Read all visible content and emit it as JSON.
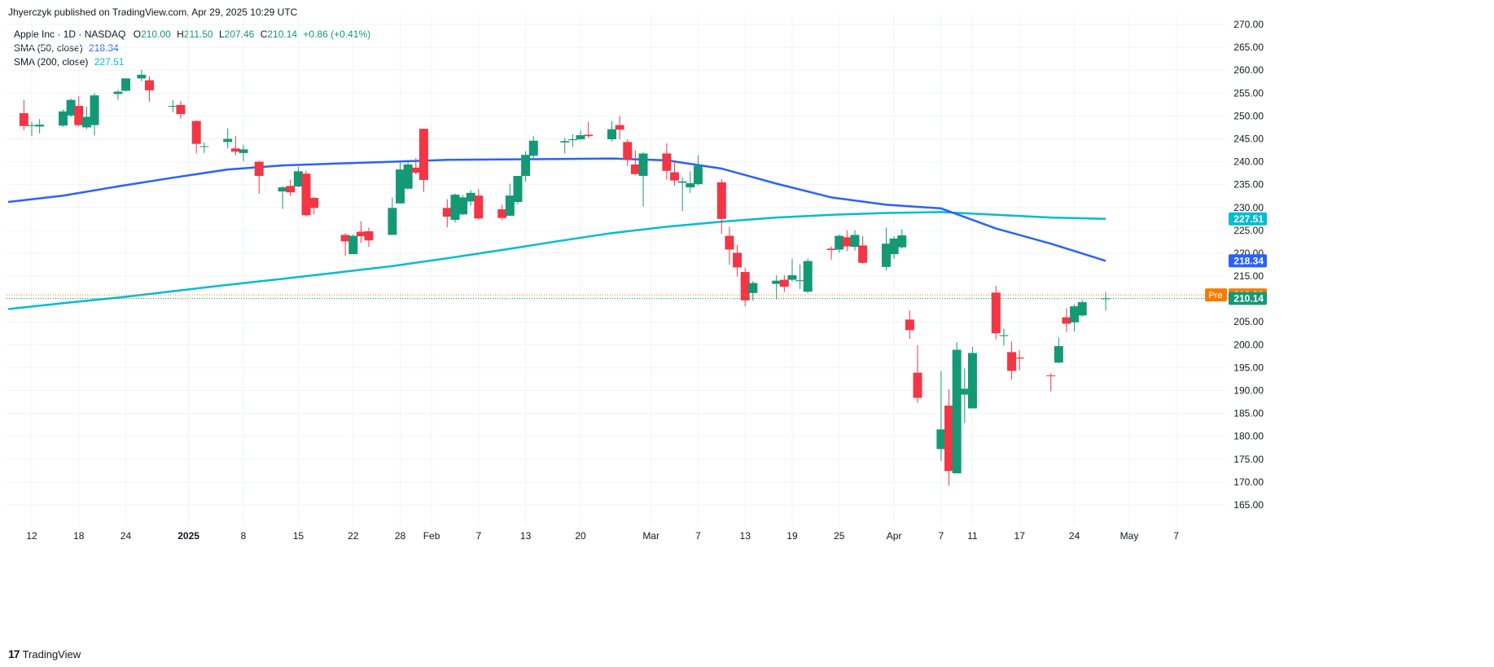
{
  "header": {
    "publisher": "Jhyerczyk published on TradingView.com, Apr 29, 2025 10:29 UTC"
  },
  "legend": {
    "symbol": "Apple Inc · 1D · NASDAQ",
    "o_label": "O",
    "o_value": "210.00",
    "h_label": "H",
    "h_value": "211.50",
    "l_label": "L",
    "l_value": "207.46",
    "c_label": "C",
    "c_value": "210.14",
    "change": "+0.86 (+0.41%)",
    "sma50_label": "SMA (50, close)",
    "sma50_value": "218.34",
    "sma200_label": "SMA (200, close)",
    "sma200_value": "227.51"
  },
  "price_tags": {
    "sma200": "227.51",
    "sma50": "218.34",
    "pre_label": "Pre",
    "pre_value": "210.90",
    "last": "210.14"
  },
  "footer": {
    "brand": "TradingView"
  },
  "colors": {
    "up": "#26a69a",
    "down": "#f23645",
    "up_body": "#149977",
    "down_body": "#f23645",
    "sma50": "#2962ff",
    "sma200": "#00bcd4",
    "pre": "#f57c00",
    "grid": "#f0f3fa"
  },
  "chart_data": {
    "type": "candlestick",
    "title": "Apple Inc · 1D · NASDAQ",
    "ylim": [
      160,
      272
    ],
    "y_ticks": [
      "270.00",
      "265.00",
      "260.00",
      "255.00",
      "250.00",
      "245.00",
      "240.00",
      "235.00",
      "230.00",
      "225.00",
      "220.00",
      "215.00",
      "210.00",
      "205.00",
      "200.00",
      "195.00",
      "190.00",
      "185.00",
      "180.00",
      "175.00",
      "170.00",
      "165.00"
    ],
    "x_ticks": [
      "12",
      "18",
      "24",
      "2025",
      "8",
      "15",
      "22",
      "28",
      "Feb",
      "7",
      "13",
      "20",
      "Mar",
      "7",
      "13",
      "19",
      "25",
      "Apr",
      "7",
      "11",
      "17",
      "24",
      "May",
      "7"
    ],
    "candles": [
      {
        "d": "2024-12-11",
        "o": 250.6,
        "h": 253.5,
        "l": 246.9,
        "c": 247.8
      },
      {
        "d": "2024-12-12",
        "o": 247.8,
        "h": 248.7,
        "l": 245.6,
        "c": 248.0
      },
      {
        "d": "2024-12-13",
        "o": 247.7,
        "h": 249.3,
        "l": 246.2,
        "c": 248.1
      },
      {
        "d": "2024-12-16",
        "o": 247.9,
        "h": 251.4,
        "l": 247.6,
        "c": 251.0
      },
      {
        "d": "2024-12-17",
        "o": 250.1,
        "h": 253.8,
        "l": 249.8,
        "c": 253.5
      },
      {
        "d": "2024-12-18",
        "o": 252.2,
        "h": 254.3,
        "l": 247.7,
        "c": 248.0
      },
      {
        "d": "2024-12-19",
        "o": 247.5,
        "h": 252.0,
        "l": 247.1,
        "c": 249.8
      },
      {
        "d": "2024-12-20",
        "o": 248.0,
        "h": 255.0,
        "l": 245.7,
        "c": 254.5
      },
      {
        "d": "2024-12-23",
        "o": 254.8,
        "h": 255.7,
        "l": 253.5,
        "c": 255.3
      },
      {
        "d": "2024-12-24",
        "o": 255.5,
        "h": 258.2,
        "l": 255.3,
        "c": 258.2
      },
      {
        "d": "2024-12-26",
        "o": 258.2,
        "h": 260.1,
        "l": 257.6,
        "c": 259.0
      },
      {
        "d": "2024-12-27",
        "o": 257.8,
        "h": 258.7,
        "l": 253.1,
        "c": 255.6
      },
      {
        "d": "2024-12-30",
        "o": 252.2,
        "h": 253.5,
        "l": 250.8,
        "c": 252.2
      },
      {
        "d": "2024-12-31",
        "o": 252.4,
        "h": 253.3,
        "l": 249.4,
        "c": 250.4
      },
      {
        "d": "2025-01-02",
        "o": 248.9,
        "h": 249.1,
        "l": 241.8,
        "c": 243.9
      },
      {
        "d": "2025-01-03",
        "o": 243.4,
        "h": 244.2,
        "l": 241.9,
        "c": 243.4
      },
      {
        "d": "2025-01-06",
        "o": 244.3,
        "h": 247.3,
        "l": 242.9,
        "c": 245.0
      },
      {
        "d": "2025-01-07",
        "o": 242.9,
        "h": 245.6,
        "l": 241.4,
        "c": 242.2
      },
      {
        "d": "2025-01-08",
        "o": 241.9,
        "h": 243.7,
        "l": 240.1,
        "c": 242.7
      },
      {
        "d": "2025-01-10",
        "o": 240.0,
        "h": 240.2,
        "l": 233.0,
        "c": 236.9
      },
      {
        "d": "2025-01-13",
        "o": 233.5,
        "h": 234.7,
        "l": 229.7,
        "c": 234.4
      },
      {
        "d": "2025-01-14",
        "o": 234.7,
        "h": 236.1,
        "l": 232.5,
        "c": 233.3
      },
      {
        "d": "2025-01-15",
        "o": 234.6,
        "h": 238.9,
        "l": 234.4,
        "c": 237.9
      },
      {
        "d": "2025-01-16",
        "o": 237.4,
        "h": 238.0,
        "l": 228.0,
        "c": 228.3
      },
      {
        "d": "2025-01-17",
        "o": 232.1,
        "h": 232.3,
        "l": 228.5,
        "c": 229.9
      },
      {
        "d": "2025-01-21",
        "o": 224.0,
        "h": 224.4,
        "l": 219.4,
        "c": 222.6
      },
      {
        "d": "2025-01-22",
        "o": 219.8,
        "h": 224.1,
        "l": 219.8,
        "c": 223.8
      },
      {
        "d": "2025-01-23",
        "o": 224.7,
        "h": 227.0,
        "l": 222.3,
        "c": 223.7
      },
      {
        "d": "2025-01-24",
        "o": 224.8,
        "h": 225.6,
        "l": 221.4,
        "c": 222.8
      },
      {
        "d": "2025-01-27",
        "o": 224.0,
        "h": 232.2,
        "l": 224.0,
        "c": 229.9
      },
      {
        "d": "2025-01-28",
        "o": 230.9,
        "h": 240.2,
        "l": 230.8,
        "c": 238.3
      },
      {
        "d": "2025-01-29",
        "o": 234.1,
        "h": 239.9,
        "l": 234.0,
        "c": 239.4
      },
      {
        "d": "2025-01-30",
        "o": 238.7,
        "h": 240.8,
        "l": 237.2,
        "c": 237.6
      },
      {
        "d": "2025-01-31",
        "o": 247.2,
        "h": 247.2,
        "l": 233.4,
        "c": 236.0
      },
      {
        "d": "2025-02-03",
        "o": 229.9,
        "h": 231.8,
        "l": 225.7,
        "c": 228.0
      },
      {
        "d": "2025-02-04",
        "o": 227.3,
        "h": 233.1,
        "l": 226.7,
        "c": 232.8
      },
      {
        "d": "2025-02-05",
        "o": 228.5,
        "h": 232.7,
        "l": 228.3,
        "c": 232.2
      },
      {
        "d": "2025-02-06",
        "o": 231.3,
        "h": 233.8,
        "l": 230.4,
        "c": 233.2
      },
      {
        "d": "2025-02-07",
        "o": 232.6,
        "h": 234.0,
        "l": 227.3,
        "c": 227.6
      },
      {
        "d": "2025-02-10",
        "o": 229.6,
        "h": 230.6,
        "l": 227.2,
        "c": 227.7
      },
      {
        "d": "2025-02-11",
        "o": 228.2,
        "h": 235.2,
        "l": 228.1,
        "c": 232.6
      },
      {
        "d": "2025-02-12",
        "o": 231.2,
        "h": 236.9,
        "l": 230.7,
        "c": 236.9
      },
      {
        "d": "2025-02-13",
        "o": 236.9,
        "h": 242.3,
        "l": 235.6,
        "c": 241.5
      },
      {
        "d": "2025-02-14",
        "o": 241.3,
        "h": 245.6,
        "l": 240.8,
        "c": 244.6
      },
      {
        "d": "2025-02-18",
        "o": 244.2,
        "h": 245.2,
        "l": 241.8,
        "c": 244.5
      },
      {
        "d": "2025-02-19",
        "o": 244.7,
        "h": 246.0,
        "l": 243.2,
        "c": 244.9
      },
      {
        "d": "2025-02-20",
        "o": 244.9,
        "h": 246.8,
        "l": 244.8,
        "c": 245.8
      },
      {
        "d": "2025-02-21",
        "o": 245.9,
        "h": 248.7,
        "l": 245.2,
        "c": 245.6
      },
      {
        "d": "2025-02-24",
        "o": 244.9,
        "h": 248.9,
        "l": 244.4,
        "c": 247.1
      },
      {
        "d": "2025-02-25",
        "o": 248.0,
        "h": 250.0,
        "l": 244.9,
        "c": 247.0
      },
      {
        "d": "2025-02-26",
        "o": 244.3,
        "h": 244.9,
        "l": 239.1,
        "c": 240.4
      },
      {
        "d": "2025-02-27",
        "o": 239.4,
        "h": 242.5,
        "l": 237.1,
        "c": 237.3
      },
      {
        "d": "2025-02-28",
        "o": 236.9,
        "h": 242.1,
        "l": 230.2,
        "c": 241.8
      },
      {
        "d": "2025-03-03",
        "o": 241.8,
        "h": 244.0,
        "l": 236.1,
        "c": 238.0
      },
      {
        "d": "2025-03-04",
        "o": 237.7,
        "h": 240.1,
        "l": 234.7,
        "c": 235.9
      },
      {
        "d": "2025-03-05",
        "o": 235.4,
        "h": 236.6,
        "l": 229.2,
        "c": 235.7
      },
      {
        "d": "2025-03-06",
        "o": 234.4,
        "h": 237.9,
        "l": 233.2,
        "c": 235.3
      },
      {
        "d": "2025-03-07",
        "o": 235.1,
        "h": 241.4,
        "l": 234.8,
        "c": 239.1
      },
      {
        "d": "2025-03-10",
        "o": 235.5,
        "h": 236.2,
        "l": 224.2,
        "c": 227.5
      },
      {
        "d": "2025-03-11",
        "o": 223.8,
        "h": 225.8,
        "l": 217.5,
        "c": 220.8
      },
      {
        "d": "2025-03-12",
        "o": 220.1,
        "h": 221.8,
        "l": 214.9,
        "c": 216.9
      },
      {
        "d": "2025-03-13",
        "o": 215.9,
        "h": 216.8,
        "l": 208.4,
        "c": 209.7
      },
      {
        "d": "2025-03-14",
        "o": 211.3,
        "h": 213.9,
        "l": 209.6,
        "c": 213.5
      },
      {
        "d": "2025-03-17",
        "o": 213.3,
        "h": 215.2,
        "l": 209.9,
        "c": 214.0
      },
      {
        "d": "2025-03-18",
        "o": 214.2,
        "h": 215.2,
        "l": 211.5,
        "c": 212.7
      },
      {
        "d": "2025-03-19",
        "o": 214.2,
        "h": 218.8,
        "l": 213.8,
        "c": 215.2
      },
      {
        "d": "2025-03-20",
        "o": 213.9,
        "h": 217.5,
        "l": 212.2,
        "c": 214.1
      },
      {
        "d": "2025-03-21",
        "o": 211.6,
        "h": 218.8,
        "l": 211.3,
        "c": 218.3
      },
      {
        "d": "2025-03-24",
        "o": 221.0,
        "h": 221.5,
        "l": 218.6,
        "c": 220.7
      },
      {
        "d": "2025-03-25",
        "o": 220.8,
        "h": 224.1,
        "l": 220.1,
        "c": 223.8
      },
      {
        "d": "2025-03-26",
        "o": 223.5,
        "h": 225.0,
        "l": 220.5,
        "c": 221.5
      },
      {
        "d": "2025-03-27",
        "o": 221.4,
        "h": 224.99,
        "l": 220.6,
        "c": 224.0
      },
      {
        "d": "2025-03-28",
        "o": 221.7,
        "h": 223.8,
        "l": 217.7,
        "c": 217.9
      },
      {
        "d": "2025-03-31",
        "o": 217.0,
        "h": 225.6,
        "l": 216.2,
        "c": 222.1
      },
      {
        "d": "2025-04-01",
        "o": 219.8,
        "h": 223.7,
        "l": 218.8,
        "c": 223.2
      },
      {
        "d": "2025-04-02",
        "o": 221.3,
        "h": 225.2,
        "l": 221.0,
        "c": 223.9
      },
      {
        "d": "2025-04-03",
        "o": 205.5,
        "h": 207.5,
        "l": 201.3,
        "c": 203.2
      },
      {
        "d": "2025-04-04",
        "o": 193.9,
        "h": 199.9,
        "l": 187.3,
        "c": 188.4
      },
      {
        "d": "2025-04-07",
        "o": 177.2,
        "h": 194.2,
        "l": 174.6,
        "c": 181.5
      },
      {
        "d": "2025-04-08",
        "o": 186.7,
        "h": 190.3,
        "l": 169.2,
        "c": 172.4
      },
      {
        "d": "2025-04-09",
        "o": 171.9,
        "h": 200.6,
        "l": 171.9,
        "c": 198.9
      },
      {
        "d": "2025-04-10",
        "o": 189.1,
        "h": 194.8,
        "l": 183.0,
        "c": 190.4
      },
      {
        "d": "2025-04-11",
        "o": 186.1,
        "h": 199.5,
        "l": 186.1,
        "c": 198.2
      },
      {
        "d": "2025-04-14",
        "o": 211.4,
        "h": 212.9,
        "l": 201.2,
        "c": 202.5
      },
      {
        "d": "2025-04-15",
        "o": 201.9,
        "h": 203.5,
        "l": 199.8,
        "c": 202.1
      },
      {
        "d": "2025-04-16",
        "o": 198.4,
        "h": 200.7,
        "l": 192.4,
        "c": 194.3
      },
      {
        "d": "2025-04-17",
        "o": 197.2,
        "h": 198.8,
        "l": 194.4,
        "c": 196.98
      },
      {
        "d": "2025-04-21",
        "o": 193.3,
        "h": 193.8,
        "l": 189.8,
        "c": 193.2
      },
      {
        "d": "2025-04-22",
        "o": 196.1,
        "h": 201.6,
        "l": 195.97,
        "c": 199.7
      },
      {
        "d": "2025-04-23",
        "o": 206.0,
        "h": 208.0,
        "l": 202.8,
        "c": 204.6
      },
      {
        "d": "2025-04-24",
        "o": 204.9,
        "h": 208.8,
        "l": 202.9,
        "c": 208.4
      },
      {
        "d": "2025-04-25",
        "o": 206.4,
        "h": 209.8,
        "l": 206.2,
        "c": 209.3
      },
      {
        "d": "2025-04-28",
        "o": 210.0,
        "h": 211.5,
        "l": 207.46,
        "c": 210.14
      }
    ],
    "sma50": {
      "name": "SMA (50, close)",
      "points": [
        [
          "2024-12-09",
          231.2
        ],
        [
          "2024-12-16",
          232.6
        ],
        [
          "2024-12-23",
          234.6
        ],
        [
          "2024-12-30",
          236.5
        ],
        [
          "2025-01-06",
          238.3
        ],
        [
          "2025-01-13",
          239.2
        ],
        [
          "2025-01-20",
          239.6
        ],
        [
          "2025-01-27",
          240.0
        ],
        [
          "2025-02-03",
          240.4
        ],
        [
          "2025-02-10",
          240.5
        ],
        [
          "2025-02-17",
          240.6
        ],
        [
          "2025-02-24",
          240.7
        ],
        [
          "2025-03-03",
          240.3
        ],
        [
          "2025-03-10",
          238.5
        ],
        [
          "2025-03-17",
          235.2
        ],
        [
          "2025-03-24",
          232.2
        ],
        [
          "2025-03-31",
          230.6
        ],
        [
          "2025-04-07",
          229.8
        ],
        [
          "2025-04-14",
          225.4
        ],
        [
          "2025-04-21",
          222.1
        ],
        [
          "2025-04-28",
          218.34
        ]
      ]
    },
    "sma200": {
      "name": "SMA (200, close)",
      "points": [
        [
          "2024-12-09",
          207.8
        ],
        [
          "2024-12-16",
          209.1
        ],
        [
          "2024-12-23",
          210.3
        ],
        [
          "2024-12-30",
          211.7
        ],
        [
          "2025-01-06",
          213.1
        ],
        [
          "2025-01-13",
          214.4
        ],
        [
          "2025-01-20",
          215.8
        ],
        [
          "2025-01-27",
          217.2
        ],
        [
          "2025-02-03",
          218.9
        ],
        [
          "2025-02-10",
          220.7
        ],
        [
          "2025-02-17",
          222.6
        ],
        [
          "2025-02-24",
          224.4
        ],
        [
          "2025-03-03",
          225.8
        ],
        [
          "2025-03-10",
          226.9
        ],
        [
          "2025-03-17",
          227.8
        ],
        [
          "2025-03-24",
          228.4
        ],
        [
          "2025-03-31",
          228.8
        ],
        [
          "2025-04-07",
          229.0
        ],
        [
          "2025-04-14",
          228.4
        ],
        [
          "2025-04-21",
          227.8
        ],
        [
          "2025-04-28",
          227.51
        ]
      ]
    },
    "last_close": 210.14,
    "premarket": 210.9
  }
}
